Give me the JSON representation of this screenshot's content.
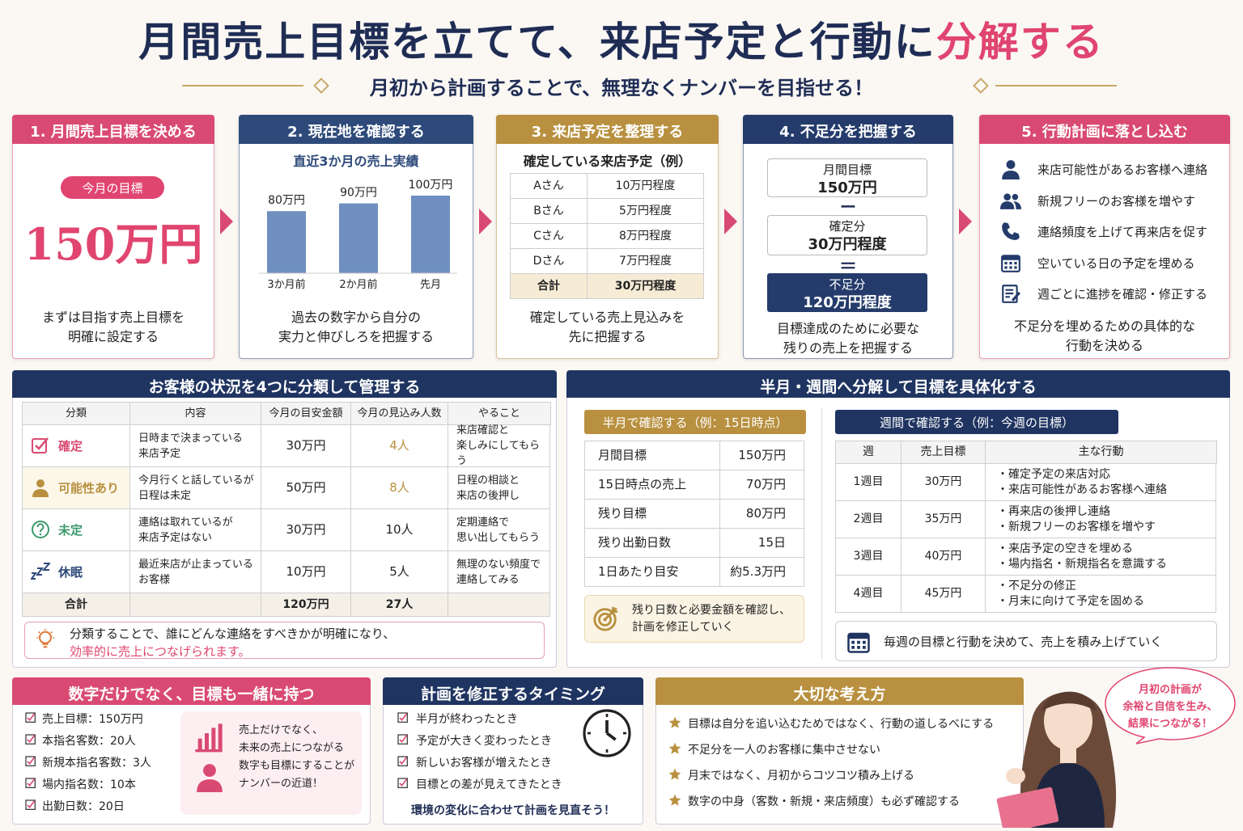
{
  "header": {
    "title_main": "月間売上目標を立てて、来店予定と行動に",
    "title_accent": "分解する",
    "subtitle": "月初から計画することで、無理なくナンバーを目指せる！"
  },
  "steps": [
    {
      "title": "1. 月間売上目標を決める",
      "badge": "今月の目標",
      "target": "150万円",
      "caption": "まずは目指す売上目標を\n明確に設定する"
    },
    {
      "title": "2. 現在地を確認する",
      "chart_data": {
        "type": "bar",
        "title": "直近3か月の売上実績",
        "categories": [
          "3か月前",
          "2か月前",
          "先月"
        ],
        "values": [
          80,
          90,
          100
        ],
        "value_labels": [
          "80万円",
          "90万円",
          "100万円"
        ],
        "color": "#6f8fc0"
      },
      "caption": "過去の数字から自分の\n実力と伸びしろを把握する"
    },
    {
      "title": "3. 来店予定を整理する",
      "table_title": "確定している来店予定（例）",
      "rows": [
        [
          "Aさん",
          "10万円程度"
        ],
        [
          "Bさん",
          "5万円程度"
        ],
        [
          "Cさん",
          "8万円程度"
        ],
        [
          "Dさん",
          "7万円程度"
        ]
      ],
      "total": [
        "合計",
        "30万円程度"
      ],
      "caption": "確定している売上見込みを\n先に把握する"
    },
    {
      "title": "4. 不足分を把握する",
      "boxes": [
        {
          "label": "月間目標",
          "value": "150万円"
        },
        {
          "label": "確定分",
          "value": "30万円程度"
        },
        {
          "label": "不足分",
          "value": "120万円程度"
        }
      ],
      "ops": [
        "ー",
        "＝"
      ],
      "caption": "目標達成のために必要な\n残りの売上を把握する"
    },
    {
      "title": "5. 行動計画に落とし込む",
      "items": [
        "来店可能性があるお客様へ連絡",
        "新規フリーのお客様を増やす",
        "連絡頻度を上げて再来店を促す",
        "空いている日の予定を埋める",
        "週ごとに進捗を確認・修正する"
      ],
      "caption": "不足分を埋めるための具体的な\n行動を決める"
    }
  ],
  "customers": {
    "title": "お客様の状況を4つに分類して管理する",
    "headers": [
      "分類",
      "内容",
      "今月の目安金額",
      "今月の見込み人数",
      "やること"
    ],
    "rows": [
      [
        "確定",
        "日時まで決まっている\n来店予定",
        "30万円",
        "4人",
        "来店確認と\n楽しみにしてもらう"
      ],
      [
        "可能性あり",
        "今月行くと話しているが\n日程は未定",
        "50万円",
        "8人",
        "日程の相談と\n来店の後押し"
      ],
      [
        "未定",
        "連絡は取れているが\n来店予定はない",
        "30万円",
        "10人",
        "定期連絡で\n思い出してもらう"
      ],
      [
        "休眠",
        "最近来店が止まっている\nお客様",
        "10万円",
        "5人",
        "無理のない頻度で\n連絡してみる"
      ]
    ],
    "total": {
      "label": "合計",
      "amount": "120万円",
      "count": "27人"
    },
    "note": "分類することで、誰にどんな連絡をすべきかが明確になり、",
    "note_accent": "効率的に売上につなげられます。"
  },
  "breakdown": {
    "title": "半月・週間へ分解して目標を具体化する",
    "half": {
      "badge": "半月で確認する（例：15日時点）",
      "rows": [
        [
          "月間目標",
          "150万円"
        ],
        [
          "15日時点の売上",
          "70万円"
        ],
        [
          "残り目標",
          "80万円"
        ],
        [
          "残り出勤日数",
          "15日"
        ],
        [
          "1日あたり目安",
          "約5.3万円"
        ]
      ],
      "note": "残り日数と必要金額を確認し、\n計画を修正していく"
    },
    "week": {
      "badge": "週間で確認する（例：今週の目標）",
      "headers": [
        "週",
        "売上目標",
        "主な行動"
      ],
      "rows": [
        [
          "1週目",
          "30万円",
          "・確定予定の来店対応\n・来店可能性があるお客様へ連絡"
        ],
        [
          "2週目",
          "35万円",
          "・再来店の後押し連絡\n・新規フリーのお客様を増やす"
        ],
        [
          "3週目",
          "40万円",
          "・来店予定の空きを埋める\n・場内指名・新規指名を意識する"
        ],
        [
          "4週目",
          "45万円",
          "・不足分の修正\n・月末に向けて予定を固める"
        ]
      ],
      "note": "毎週の目標と行動を決めて、売上を積み上げていく"
    }
  },
  "goals": {
    "title": "数字だけでなく、目標も一緒に持つ",
    "items": [
      "売上目標：150万円",
      "本指名客数：20人",
      "新規本指名客数：3人",
      "場内指名数：10本",
      "出勤日数：20日"
    ],
    "note": "売上だけでなく、\n未来の売上につながる\n数字も目標にすることが\nナンバーの近道！"
  },
  "timing": {
    "title": "計画を修正するタイミング",
    "items": [
      "半月が終わったとき",
      "予定が大きく変わったとき",
      "新しいお客様が増えたとき",
      "目標との差が見えてきたとき"
    ],
    "note": "環境の変化に合わせて計画を見直そう！"
  },
  "mindset": {
    "title": "大切な考え方",
    "items": [
      "目標は自分を追い込むためではなく、行動の道しるべにする",
      "不足分を一人のお客様に集中させない",
      "月末ではなく、月初からコツコツ積み上げる",
      "数字の中身（客数・新規・来店頻度）も必ず確認する"
    ]
  },
  "bubble": "月初の計画が\n余裕と自信を生み、\n結果につながる！"
}
